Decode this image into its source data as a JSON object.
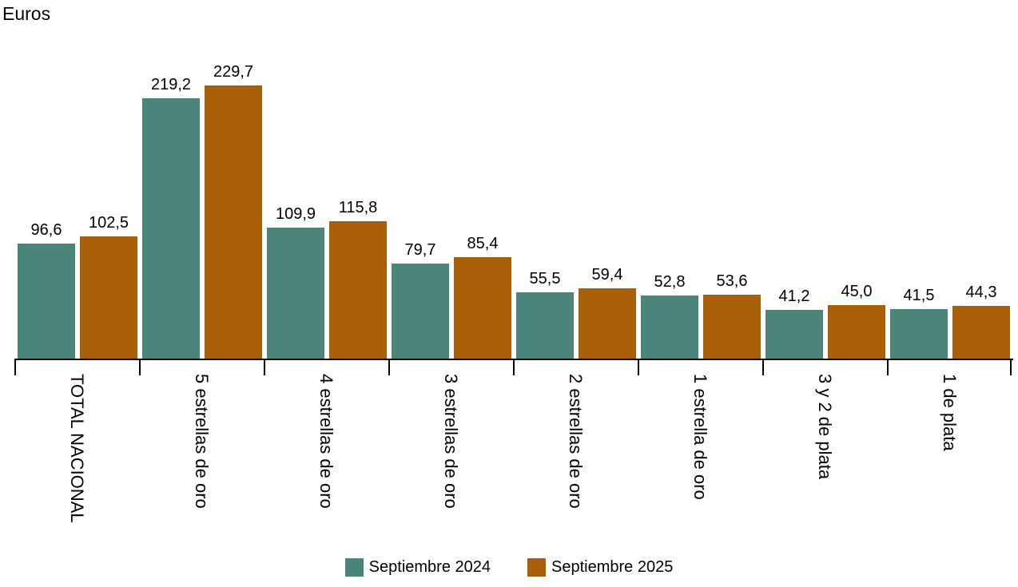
{
  "chart_data": {
    "type": "bar",
    "title": "Euros",
    "categories": [
      "TOTAL NACIONAL",
      "5 estrellas de oro",
      "4 estrellas de oro",
      "3 estrellas de oro",
      "2 estrellas de oro",
      "1 estrella de oro",
      "3 y 2 de plata",
      "1 de plata"
    ],
    "series": [
      {
        "name": "Septiembre 2024",
        "color": "#4b8478",
        "values": [
          96.6,
          219.2,
          109.9,
          79.7,
          55.5,
          52.8,
          41.2,
          41.5
        ]
      },
      {
        "name": "Septiembre 2025",
        "color": "#a85f08",
        "values": [
          102.5,
          229.7,
          115.8,
          85.4,
          59.4,
          53.6,
          45.0,
          44.3
        ]
      }
    ],
    "value_label_decimal_separator": ",",
    "ylim": [
      0,
      240
    ],
    "grid": false,
    "legend_position": "bottom",
    "axis_color": "#000000",
    "text_color": "#000000"
  }
}
